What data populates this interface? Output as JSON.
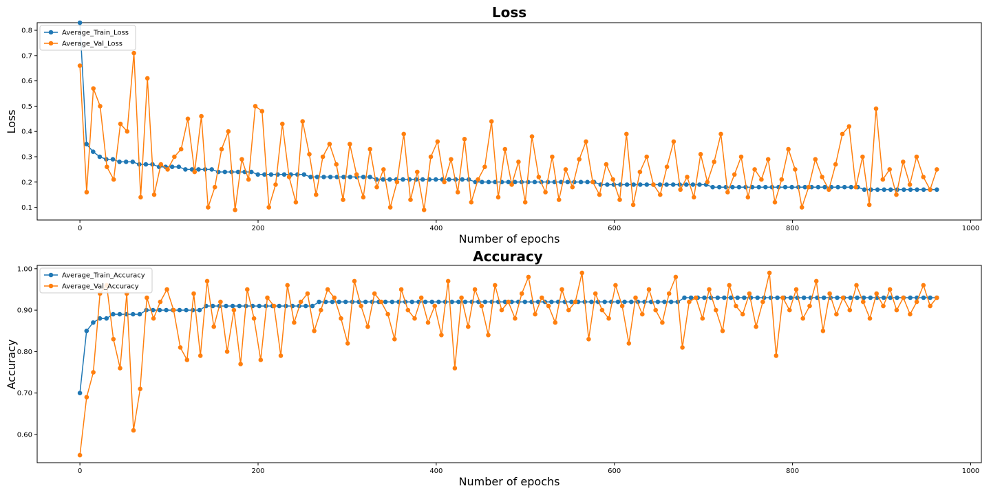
{
  "colors": {
    "train": "#1f77b4",
    "val": "#ff7f0e"
  },
  "chart_data": [
    {
      "type": "line",
      "title": "Loss",
      "xlabel": "Number of epochs",
      "ylabel": "Loss",
      "xlim": [
        -48,
        1012
      ],
      "ylim": [
        0.05,
        0.83
      ],
      "xticks": [
        0,
        200,
        400,
        600,
        800,
        1000
      ],
      "yticks": [
        0.1,
        0.2,
        0.3,
        0.4,
        0.5,
        0.6,
        0.7,
        0.8
      ],
      "legend_position": "top-left",
      "markers": true,
      "x_range": [
        0,
        962
      ],
      "series": [
        {
          "name": "Average_Train_Loss",
          "color": "#1f77b4",
          "values": [
            0.83,
            0.35,
            0.32,
            0.3,
            0.29,
            0.29,
            0.28,
            0.28,
            0.28,
            0.27,
            0.27,
            0.27,
            0.26,
            0.26,
            0.26,
            0.26,
            0.25,
            0.25,
            0.25,
            0.25,
            0.25,
            0.24,
            0.24,
            0.24,
            0.24,
            0.24,
            0.24,
            0.23,
            0.23,
            0.23,
            0.23,
            0.23,
            0.23,
            0.23,
            0.23,
            0.22,
            0.22,
            0.22,
            0.22,
            0.22,
            0.22,
            0.22,
            0.22,
            0.22,
            0.22,
            0.21,
            0.21,
            0.21,
            0.21,
            0.21,
            0.21,
            0.21,
            0.21,
            0.21,
            0.21,
            0.21,
            0.21,
            0.21,
            0.21,
            0.21,
            0.2,
            0.2,
            0.2,
            0.2,
            0.2,
            0.2,
            0.2,
            0.2,
            0.2,
            0.2,
            0.2,
            0.2,
            0.2,
            0.2,
            0.2,
            0.2,
            0.2,
            0.2,
            0.2,
            0.19,
            0.19,
            0.19,
            0.19,
            0.19,
            0.19,
            0.19,
            0.19,
            0.19,
            0.19,
            0.19,
            0.19,
            0.19,
            0.19,
            0.19,
            0.19,
            0.19,
            0.18,
            0.18,
            0.18,
            0.18,
            0.18,
            0.18,
            0.18,
            0.18,
            0.18,
            0.18,
            0.18,
            0.18,
            0.18,
            0.18,
            0.18,
            0.18,
            0.18,
            0.18,
            0.18,
            0.18,
            0.18,
            0.18,
            0.18,
            0.17,
            0.17,
            0.17,
            0.17,
            0.17,
            0.17,
            0.17,
            0.17,
            0.17,
            0.17,
            0.17,
            0.17
          ]
        },
        {
          "name": "Average_Val_Loss",
          "color": "#ff7f0e",
          "values": [
            0.66,
            0.16,
            0.57,
            0.5,
            0.26,
            0.21,
            0.43,
            0.4,
            0.71,
            0.14,
            0.61,
            0.15,
            0.27,
            0.25,
            0.3,
            0.33,
            0.45,
            0.24,
            0.46,
            0.1,
            0.18,
            0.33,
            0.4,
            0.09,
            0.29,
            0.21,
            0.5,
            0.48,
            0.1,
            0.19,
            0.43,
            0.22,
            0.12,
            0.44,
            0.31,
            0.15,
            0.3,
            0.35,
            0.27,
            0.13,
            0.35,
            0.23,
            0.14,
            0.33,
            0.18,
            0.25,
            0.1,
            0.2,
            0.39,
            0.13,
            0.24,
            0.09,
            0.3,
            0.36,
            0.2,
            0.29,
            0.16,
            0.37,
            0.12,
            0.21,
            0.26,
            0.44,
            0.14,
            0.33,
            0.19,
            0.28,
            0.12,
            0.38,
            0.22,
            0.16,
            0.3,
            0.13,
            0.25,
            0.18,
            0.29,
            0.36,
            0.2,
            0.15,
            0.27,
            0.21,
            0.13,
            0.39,
            0.11,
            0.24,
            0.3,
            0.19,
            0.15,
            0.26,
            0.36,
            0.17,
            0.22,
            0.14,
            0.31,
            0.2,
            0.28,
            0.39,
            0.16,
            0.23,
            0.3,
            0.14,
            0.25,
            0.21,
            0.29,
            0.12,
            0.21,
            0.33,
            0.25,
            0.1,
            0.18,
            0.29,
            0.22,
            0.17,
            0.27,
            0.39,
            0.42,
            0.18,
            0.3,
            0.11,
            0.49,
            0.21,
            0.25,
            0.15,
            0.28,
            0.19,
            0.3,
            0.22,
            0.17,
            0.25
          ]
        }
      ]
    },
    {
      "type": "line",
      "title": "Accuracy",
      "xlabel": "Number of epochs",
      "ylabel": "Accuracy",
      "xlim": [
        -48,
        1012
      ],
      "ylim": [
        0.532,
        1.008
      ],
      "xticks": [
        0,
        200,
        400,
        600,
        800,
        1000
      ],
      "yticks": [
        0.6,
        0.7,
        0.8,
        0.9,
        1.0
      ],
      "legend_position": "top-left",
      "markers": true,
      "x_range": [
        0,
        962
      ],
      "series": [
        {
          "name": "Average_Train_Accuracy",
          "color": "#1f77b4",
          "values": [
            0.7,
            0.85,
            0.87,
            0.88,
            0.88,
            0.89,
            0.89,
            0.89,
            0.89,
            0.89,
            0.9,
            0.9,
            0.9,
            0.9,
            0.9,
            0.9,
            0.9,
            0.9,
            0.9,
            0.91,
            0.91,
            0.91,
            0.91,
            0.91,
            0.91,
            0.91,
            0.91,
            0.91,
            0.91,
            0.91,
            0.91,
            0.91,
            0.91,
            0.91,
            0.91,
            0.91,
            0.92,
            0.92,
            0.92,
            0.92,
            0.92,
            0.92,
            0.92,
            0.92,
            0.92,
            0.92,
            0.92,
            0.92,
            0.92,
            0.92,
            0.92,
            0.92,
            0.92,
            0.92,
            0.92,
            0.92,
            0.92,
            0.92,
            0.92,
            0.92,
            0.92,
            0.92,
            0.92,
            0.92,
            0.92,
            0.92,
            0.92,
            0.92,
            0.92,
            0.92,
            0.92,
            0.92,
            0.92,
            0.92,
            0.92,
            0.92,
            0.92,
            0.92,
            0.92,
            0.92,
            0.92,
            0.92,
            0.92,
            0.92,
            0.92,
            0.92,
            0.92,
            0.92,
            0.92,
            0.92,
            0.92,
            0.93,
            0.93,
            0.93,
            0.93,
            0.93,
            0.93,
            0.93,
            0.93,
            0.93,
            0.93,
            0.93,
            0.93,
            0.93,
            0.93,
            0.93,
            0.93,
            0.93,
            0.93,
            0.93,
            0.93,
            0.93,
            0.93,
            0.93,
            0.93,
            0.93,
            0.93,
            0.93,
            0.93,
            0.93,
            0.93,
            0.93,
            0.93,
            0.93,
            0.93,
            0.93,
            0.93,
            0.93,
            0.93,
            0.93
          ]
        },
        {
          "name": "Average_Val_Accuracy",
          "color": "#ff7f0e",
          "values": [
            0.55,
            0.69,
            0.75,
            0.94,
            0.96,
            0.83,
            0.76,
            0.94,
            0.61,
            0.71,
            0.93,
            0.88,
            0.92,
            0.95,
            0.9,
            0.81,
            0.78,
            0.94,
            0.79,
            0.97,
            0.86,
            0.92,
            0.8,
            0.9,
            0.77,
            0.95,
            0.88,
            0.78,
            0.93,
            0.91,
            0.79,
            0.96,
            0.87,
            0.92,
            0.94,
            0.85,
            0.9,
            0.95,
            0.93,
            0.88,
            0.82,
            0.97,
            0.91,
            0.86,
            0.94,
            0.92,
            0.89,
            0.83,
            0.95,
            0.9,
            0.88,
            0.93,
            0.87,
            0.91,
            0.84,
            0.97,
            0.76,
            0.93,
            0.86,
            0.95,
            0.91,
            0.84,
            0.96,
            0.9,
            0.92,
            0.88,
            0.94,
            0.98,
            0.89,
            0.93,
            0.91,
            0.87,
            0.95,
            0.9,
            0.92,
            0.99,
            0.83,
            0.94,
            0.9,
            0.88,
            0.96,
            0.91,
            0.82,
            0.93,
            0.89,
            0.95,
            0.9,
            0.87,
            0.94,
            0.98,
            0.81,
            0.92,
            0.93,
            0.88,
            0.95,
            0.9,
            0.85,
            0.96,
            0.91,
            0.89,
            0.94,
            0.86,
            0.92,
            0.99,
            0.79,
            0.93,
            0.9,
            0.95,
            0.88,
            0.91,
            0.97,
            0.85,
            0.94,
            0.89,
            0.93,
            0.9,
            0.96,
            0.92,
            0.88,
            0.94,
            0.91,
            0.95,
            0.9,
            0.93,
            0.89,
            0.92,
            0.96,
            0.91,
            0.93
          ]
        }
      ]
    }
  ]
}
